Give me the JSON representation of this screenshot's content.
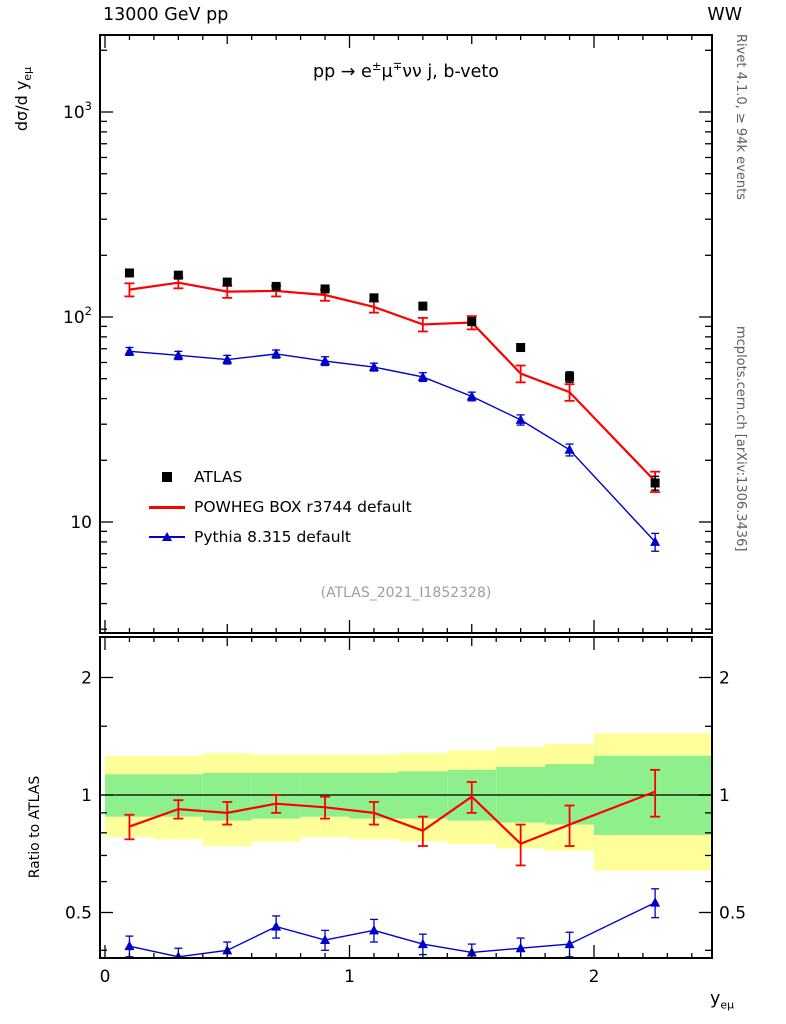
{
  "header": {
    "left": "13000 GeV pp",
    "right": "WW"
  },
  "title": {
    "pre": "pp ",
    "arrow": "→ ",
    "e": "e",
    "sup1": "±",
    "mu": "μ",
    "sup2": "∓",
    "post": "νν j, b-veto"
  },
  "axes": {
    "y_label": "dσ/d y",
    "y_label_sub": "eμ",
    "ratio_label": "Ratio to ATLAS",
    "x_label": "y",
    "x_label_sub": "eμ"
  },
  "side_text": {
    "top": "Rivet 4.1.0, ≥ 94k events",
    "bottom": "mcplots.cern.ch [arXiv:1306.3436]"
  },
  "watermark": "(ATLAS_2021_I1852328)",
  "legend": [
    {
      "label": "ATLAS",
      "marker": "square",
      "color": "#000000"
    },
    {
      "label": "POWHEG BOX r3744 default",
      "marker": "line",
      "color": "#ff0000"
    },
    {
      "label": "Pythia 8.315 default",
      "marker": "triangle-line",
      "color": "#0000cc"
    }
  ],
  "colors": {
    "atlas": "#000000",
    "powheg": "#ff0000",
    "pythia": "#0000cc",
    "band_yellow": "#ffff99",
    "band_green": "#8df08d",
    "frame": "#000000",
    "side_text": "#606060",
    "watermark": "#9e9e9e"
  },
  "chart_data": {
    "type": "line",
    "title": "pp → e±μ∓νν j, b-veto",
    "xlabel": "y_eμ",
    "ylabel": "dσ/d y_eμ",
    "ratio_label": "Ratio to ATLAS",
    "x_axis": {
      "min": -0.02,
      "max": 2.48,
      "major_ticks": [
        0,
        1,
        2
      ],
      "minor_step": 0.1
    },
    "y_axis_main": {
      "scale": "log",
      "min": 2.9,
      "max": 2350,
      "labeled_ticks": [
        10,
        100,
        1000
      ]
    },
    "y_axis_ratio": {
      "scale": "log",
      "min": 0.38,
      "max": 2.55,
      "labeled_ticks": [
        0.5,
        1,
        2
      ]
    },
    "x": [
      0.1,
      0.3,
      0.5,
      0.7,
      0.9,
      1.1,
      1.3,
      1.5,
      1.7,
      1.9,
      2.25
    ],
    "bin_edges": [
      0,
      0.2,
      0.4,
      0.6,
      0.8,
      1.0,
      1.2,
      1.4,
      1.6,
      1.8,
      2.0,
      2.5
    ],
    "series": [
      {
        "name": "ATLAS",
        "marker": "square",
        "color": "#000000",
        "values": [
          164,
          160,
          148,
          141,
          137,
          124,
          113,
          95,
          71,
          51,
          15.5
        ],
        "yerr": [
          5,
          5,
          5,
          5,
          4,
          4,
          4,
          4,
          3,
          3,
          1.2
        ]
      },
      {
        "name": "POWHEG BOX r3744 default",
        "marker": "none",
        "color": "#ff0000",
        "values": [
          136,
          147,
          133,
          134,
          128,
          112,
          92,
          94,
          53,
          43,
          15.8
        ],
        "yerr": [
          10,
          9,
          9,
          8,
          8,
          7,
          7,
          7,
          5,
          4,
          1.8
        ]
      },
      {
        "name": "Pythia 8.315 default",
        "marker": "triangle",
        "color": "#0000cc",
        "values": [
          68,
          65,
          62,
          66,
          61,
          57,
          51,
          41,
          31.5,
          22.5,
          8
        ],
        "yerr": [
          3,
          3,
          3,
          3,
          3,
          2.5,
          2.5,
          2,
          1.8,
          1.5,
          0.8
        ]
      }
    ],
    "ratio": {
      "reference": 1,
      "powheg": {
        "values": [
          0.83,
          0.92,
          0.9,
          0.95,
          0.93,
          0.9,
          0.81,
          0.99,
          0.75,
          0.84,
          1.02
        ],
        "err": [
          0.06,
          0.05,
          0.06,
          0.05,
          0.06,
          0.06,
          0.07,
          0.09,
          0.09,
          0.1,
          0.14
        ]
      },
      "pythia": {
        "values": [
          0.41,
          0.385,
          0.4,
          0.46,
          0.425,
          0.45,
          0.415,
          0.395,
          0.405,
          0.415,
          0.53
        ],
        "err": [
          0.025,
          0.02,
          0.02,
          0.03,
          0.025,
          0.03,
          0.025,
          0.02,
          0.025,
          0.03,
          0.045
        ]
      },
      "bands": {
        "yellow_lo": [
          0.78,
          0.77,
          0.74,
          0.76,
          0.78,
          0.77,
          0.76,
          0.75,
          0.73,
          0.72,
          0.64
        ],
        "yellow_hi": [
          1.26,
          1.26,
          1.28,
          1.27,
          1.27,
          1.27,
          1.28,
          1.3,
          1.33,
          1.35,
          1.44
        ],
        "green_lo": [
          0.88,
          0.88,
          0.86,
          0.87,
          0.88,
          0.87,
          0.87,
          0.86,
          0.85,
          0.84,
          0.79
        ],
        "green_hi": [
          1.13,
          1.13,
          1.14,
          1.14,
          1.14,
          1.14,
          1.15,
          1.16,
          1.18,
          1.2,
          1.26
        ]
      }
    },
    "tick_labels": {
      "main_y": [
        {
          "value": 10,
          "base": "10",
          "exp": ""
        },
        {
          "value": 100,
          "base": "10",
          "exp": "2"
        },
        {
          "value": 1000,
          "base": "10",
          "exp": "3"
        }
      ],
      "ratio_y": [
        {
          "value": 0.5,
          "label": "0.5"
        },
        {
          "value": 1,
          "label": "1"
        },
        {
          "value": 2,
          "label": "2"
        }
      ],
      "ratio_y_minor": [
        0.4,
        0.6,
        0.7,
        0.8,
        0.9,
        1.5
      ],
      "x": [
        {
          "value": 0,
          "label": "0"
        },
        {
          "value": 1,
          "label": "1"
        },
        {
          "value": 2,
          "label": "2"
        }
      ]
    }
  }
}
